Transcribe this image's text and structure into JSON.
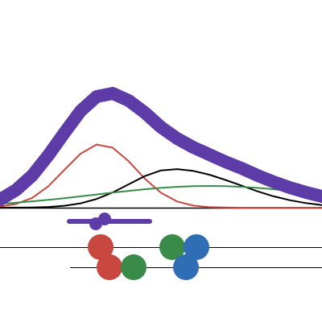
{
  "chart_data": [
    {
      "type": "line",
      "x": [
        0,
        20,
        40,
        60,
        80,
        100,
        120,
        140,
        160,
        180,
        200,
        220,
        240,
        260,
        280,
        300,
        320,
        340,
        360,
        380,
        400
      ],
      "xlim": [
        0,
        400
      ],
      "ylim": [
        0,
        258
      ],
      "series": [
        {
          "color": "#c8473f",
          "width": 2,
          "values": [
            1.4,
            4.6,
            12.2,
            26.6,
            47,
            67,
            78.5,
            74.5,
            57.6,
            36,
            18.5,
            7.7,
            2.6,
            0.7,
            0.2,
            0,
            0,
            0,
            0,
            0,
            0
          ]
        },
        {
          "color": "#000000",
          "width": 2,
          "values": [
            0,
            0.1,
            0.3,
            0.9,
            2.4,
            5.4,
            10.8,
            18.9,
            29.1,
            39.3,
            46.3,
            47.9,
            45.7,
            41,
            34.5,
            27.4,
            20.3,
            14.1,
            9.3,
            5.7,
            3.3
          ]
        },
        {
          "color": "#3a8a4a",
          "width": 2,
          "values": [
            4.8,
            6.2,
            7.9,
            9.7,
            11.8,
            14.1,
            16.4,
            18.7,
            20.9,
            22.9,
            24.6,
            25.9,
            26.7,
            27,
            26.7,
            25.9,
            24.6,
            22.9,
            20.9,
            18.7,
            16.4
          ]
        },
        {
          "color": "#5e3ca8",
          "width": 16,
          "values": [
            10,
            22,
            40,
            65,
            93,
            120,
            138,
            142,
            133,
            118,
            100,
            86,
            75,
            66,
            57,
            49,
            40,
            32,
            25,
            19,
            14
          ]
        }
      ]
    },
    {
      "type": "dots",
      "xlim": [
        0,
        400
      ],
      "interval": {
        "color": "#5e3ca8",
        "x": [
          86,
          186
        ],
        "points": [
          130,
          119
        ]
      },
      "rows": [
        [
          {
            "x": 125,
            "color": "#c8473f"
          },
          {
            "x": 214,
            "color": "#3a8a4a"
          },
          {
            "x": 244,
            "color": "#2f6db5"
          }
        ],
        [
          {
            "x": 136,
            "color": "#c8473f"
          },
          {
            "x": 166,
            "color": "#3a8a4a"
          },
          {
            "x": 231,
            "color": "#2f6db5"
          }
        ]
      ]
    }
  ]
}
